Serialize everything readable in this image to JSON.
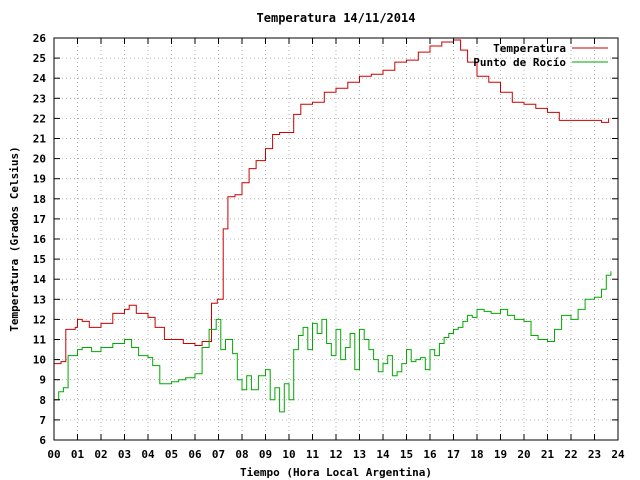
{
  "chart_data": {
    "type": "line",
    "title": "Temperatura 14/11/2014",
    "xlabel": "Tiempo (Hora Local Argentina)",
    "ylabel": "Temperatura (Grados Celsius)",
    "xlim": [
      0,
      24
    ],
    "ylim": [
      6,
      26
    ],
    "x_ticks": [
      "00",
      "01",
      "02",
      "03",
      "04",
      "05",
      "06",
      "07",
      "08",
      "09",
      "10",
      "11",
      "12",
      "13",
      "14",
      "15",
      "16",
      "17",
      "18",
      "19",
      "20",
      "21",
      "22",
      "23",
      "24"
    ],
    "y_ticks": [
      6,
      7,
      8,
      9,
      10,
      11,
      12,
      13,
      14,
      15,
      16,
      17,
      18,
      19,
      20,
      21,
      22,
      23,
      24,
      25,
      26
    ],
    "grid": true,
    "legend_position": "top-right",
    "series": [
      {
        "name": "Temperatura",
        "color": "#cc0000",
        "x": [
          0,
          0.3,
          0.5,
          0.9,
          1.0,
          1.2,
          1.5,
          2.0,
          2.5,
          3.0,
          3.2,
          3.5,
          4.0,
          4.3,
          4.7,
          5.0,
          5.5,
          6.0,
          6.3,
          6.7,
          6.95,
          7.2,
          7.4,
          7.7,
          8.0,
          8.3,
          8.6,
          9.0,
          9.3,
          9.6,
          10.0,
          10.2,
          10.5,
          11.0,
          11.5,
          12.0,
          12.5,
          13.0,
          13.5,
          14.0,
          14.5,
          15.0,
          15.5,
          16.0,
          16.5,
          17.0,
          17.3,
          17.6,
          18.0,
          18.5,
          19.0,
          19.5,
          20.0,
          20.5,
          21.0,
          21.5,
          22.0,
          22.5,
          23.0,
          23.3,
          23.6
        ],
        "values": [
          9.8,
          9.9,
          11.5,
          11.6,
          12.0,
          11.9,
          11.6,
          11.8,
          12.3,
          12.5,
          12.7,
          12.3,
          12.1,
          11.6,
          11.0,
          11.0,
          10.8,
          10.7,
          10.9,
          12.8,
          13.0,
          16.5,
          18.1,
          18.2,
          18.8,
          19.5,
          19.9,
          20.5,
          21.2,
          21.3,
          21.3,
          22.2,
          22.7,
          22.8,
          23.3,
          23.5,
          23.8,
          24.1,
          24.2,
          24.4,
          24.8,
          24.9,
          25.3,
          25.6,
          25.8,
          25.9,
          25.4,
          24.8,
          24.1,
          23.8,
          23.3,
          22.8,
          22.7,
          22.5,
          22.3,
          21.9,
          21.9,
          21.9,
          21.9,
          21.8,
          22.0
        ]
      },
      {
        "name": "Punto de Rocío",
        "color": "#00aa00",
        "x": [
          0,
          0.2,
          0.4,
          0.6,
          1.0,
          1.2,
          1.6,
          2.0,
          2.5,
          3.0,
          3.3,
          3.6,
          4.0,
          4.2,
          4.5,
          4.8,
          5.0,
          5.3,
          5.6,
          6.0,
          6.3,
          6.6,
          6.9,
          7.1,
          7.3,
          7.6,
          7.8,
          8.0,
          8.2,
          8.4,
          8.7,
          9.0,
          9.2,
          9.4,
          9.6,
          9.8,
          10.0,
          10.2,
          10.4,
          10.6,
          10.8,
          11.0,
          11.2,
          11.4,
          11.6,
          11.8,
          12.0,
          12.2,
          12.4,
          12.6,
          12.8,
          13.0,
          13.2,
          13.4,
          13.6,
          13.8,
          14.0,
          14.2,
          14.4,
          14.6,
          14.8,
          15.0,
          15.2,
          15.4,
          15.6,
          15.8,
          16.0,
          16.2,
          16.4,
          16.6,
          16.8,
          17.0,
          17.2,
          17.4,
          17.6,
          17.8,
          18.0,
          18.3,
          18.6,
          19.0,
          19.3,
          19.6,
          20.0,
          20.3,
          20.6,
          21.0,
          21.3,
          21.6,
          22.0,
          22.3,
          22.6,
          23.0,
          23.3,
          23.5,
          23.7
        ],
        "values": [
          8.0,
          8.4,
          8.6,
          10.2,
          10.5,
          10.6,
          10.4,
          10.6,
          10.8,
          11.0,
          10.6,
          10.2,
          10.1,
          9.7,
          8.8,
          8.8,
          8.9,
          9.0,
          9.1,
          9.3,
          10.6,
          11.5,
          12.0,
          10.5,
          11.0,
          10.3,
          9.0,
          8.5,
          9.2,
          8.5,
          9.2,
          9.5,
          8.0,
          8.6,
          7.4,
          8.8,
          8.0,
          10.5,
          11.2,
          11.6,
          10.5,
          11.8,
          11.3,
          12.0,
          10.8,
          10.2,
          11.5,
          10.0,
          10.6,
          11.3,
          9.5,
          11.5,
          11.0,
          10.5,
          10.0,
          9.4,
          9.8,
          10.2,
          9.2,
          9.4,
          9.8,
          10.5,
          9.9,
          10.0,
          10.1,
          9.5,
          10.5,
          10.2,
          10.8,
          11.1,
          11.3,
          11.5,
          11.6,
          11.9,
          12.2,
          12.1,
          12.5,
          12.4,
          12.3,
          12.5,
          12.2,
          12.0,
          11.9,
          11.2,
          11.0,
          10.9,
          11.5,
          12.2,
          12.0,
          12.5,
          13.0,
          13.1,
          13.5,
          14.2,
          14.4
        ]
      }
    ]
  }
}
